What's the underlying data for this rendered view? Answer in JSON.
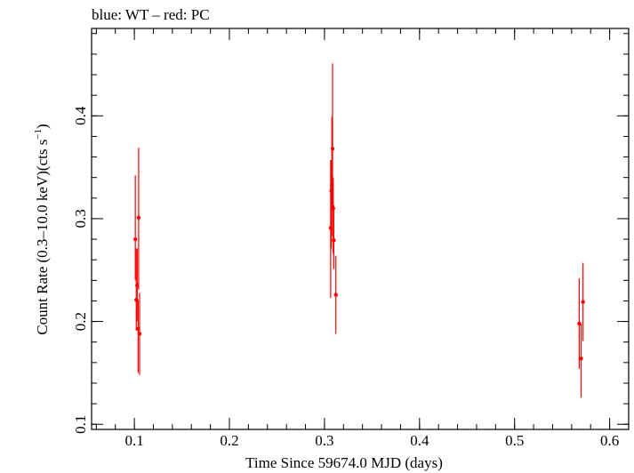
{
  "chart_data": {
    "type": "scatter",
    "title": "blue: WT – red: PC",
    "xlabel": "Time Since 59674.0 MJD (days)",
    "ylabel_main": "Count Rate (0.3–10.0 keV)(cts s",
    "ylabel_sup": "−1",
    "ylabel_close": ")",
    "xlim": [
      0.055,
      0.62
    ],
    "ylim": [
      0.095,
      0.485
    ],
    "xticks": [
      0.1,
      0.2,
      0.3,
      0.4,
      0.5,
      0.6
    ],
    "xtick_labels": [
      "0.1",
      "0.2",
      "0.3",
      "0.4",
      "0.5",
      "0.6"
    ],
    "yticks": [
      0.1,
      0.2,
      0.3,
      0.4
    ],
    "ytick_labels": [
      "0.1",
      "0.2",
      "0.3",
      "0.4"
    ],
    "x_minor_step": 0.02,
    "y_minor_step": 0.02,
    "series": [
      {
        "name": "PC",
        "color": "#ff0000",
        "points": [
          {
            "x": 0.101,
            "y": 0.28,
            "yerr_lo": 0.04,
            "yerr_hi": 0.062
          },
          {
            "x": 0.102,
            "y": 0.221,
            "yerr_lo": 0.03,
            "yerr_hi": 0.05
          },
          {
            "x": 0.103,
            "y": 0.235,
            "yerr_lo": 0.035,
            "yerr_hi": 0.036
          },
          {
            "x": 0.104,
            "y": 0.193,
            "yerr_lo": 0.043,
            "yerr_hi": 0.028
          },
          {
            "x": 0.1045,
            "y": 0.301,
            "yerr_lo": 0.07,
            "yerr_hi": 0.068
          },
          {
            "x": 0.1055,
            "y": 0.188,
            "yerr_lo": 0.04,
            "yerr_hi": 0.04
          },
          {
            "x": 0.3065,
            "y": 0.291,
            "yerr_lo": 0.068,
            "yerr_hi": 0.066
          },
          {
            "x": 0.3072,
            "y": 0.327,
            "yerr_lo": 0.056,
            "yerr_hi": 0.03
          },
          {
            "x": 0.3078,
            "y": 0.333,
            "yerr_lo": 0.05,
            "yerr_hi": 0.066
          },
          {
            "x": 0.3085,
            "y": 0.368,
            "yerr_lo": 0.06,
            "yerr_hi": 0.083
          },
          {
            "x": 0.3092,
            "y": 0.31,
            "yerr_lo": 0.044,
            "yerr_hi": 0.03
          },
          {
            "x": 0.3098,
            "y": 0.279,
            "yerr_lo": 0.028,
            "yerr_hi": 0.034
          },
          {
            "x": 0.312,
            "y": 0.226,
            "yerr_lo": 0.038,
            "yerr_hi": 0.038
          },
          {
            "x": 0.568,
            "y": 0.198,
            "yerr_lo": 0.044,
            "yerr_hi": 0.044
          },
          {
            "x": 0.57,
            "y": 0.164,
            "yerr_lo": 0.038,
            "yerr_hi": 0.034
          },
          {
            "x": 0.572,
            "y": 0.219,
            "yerr_lo": 0.038,
            "yerr_hi": 0.038
          }
        ]
      }
    ]
  }
}
